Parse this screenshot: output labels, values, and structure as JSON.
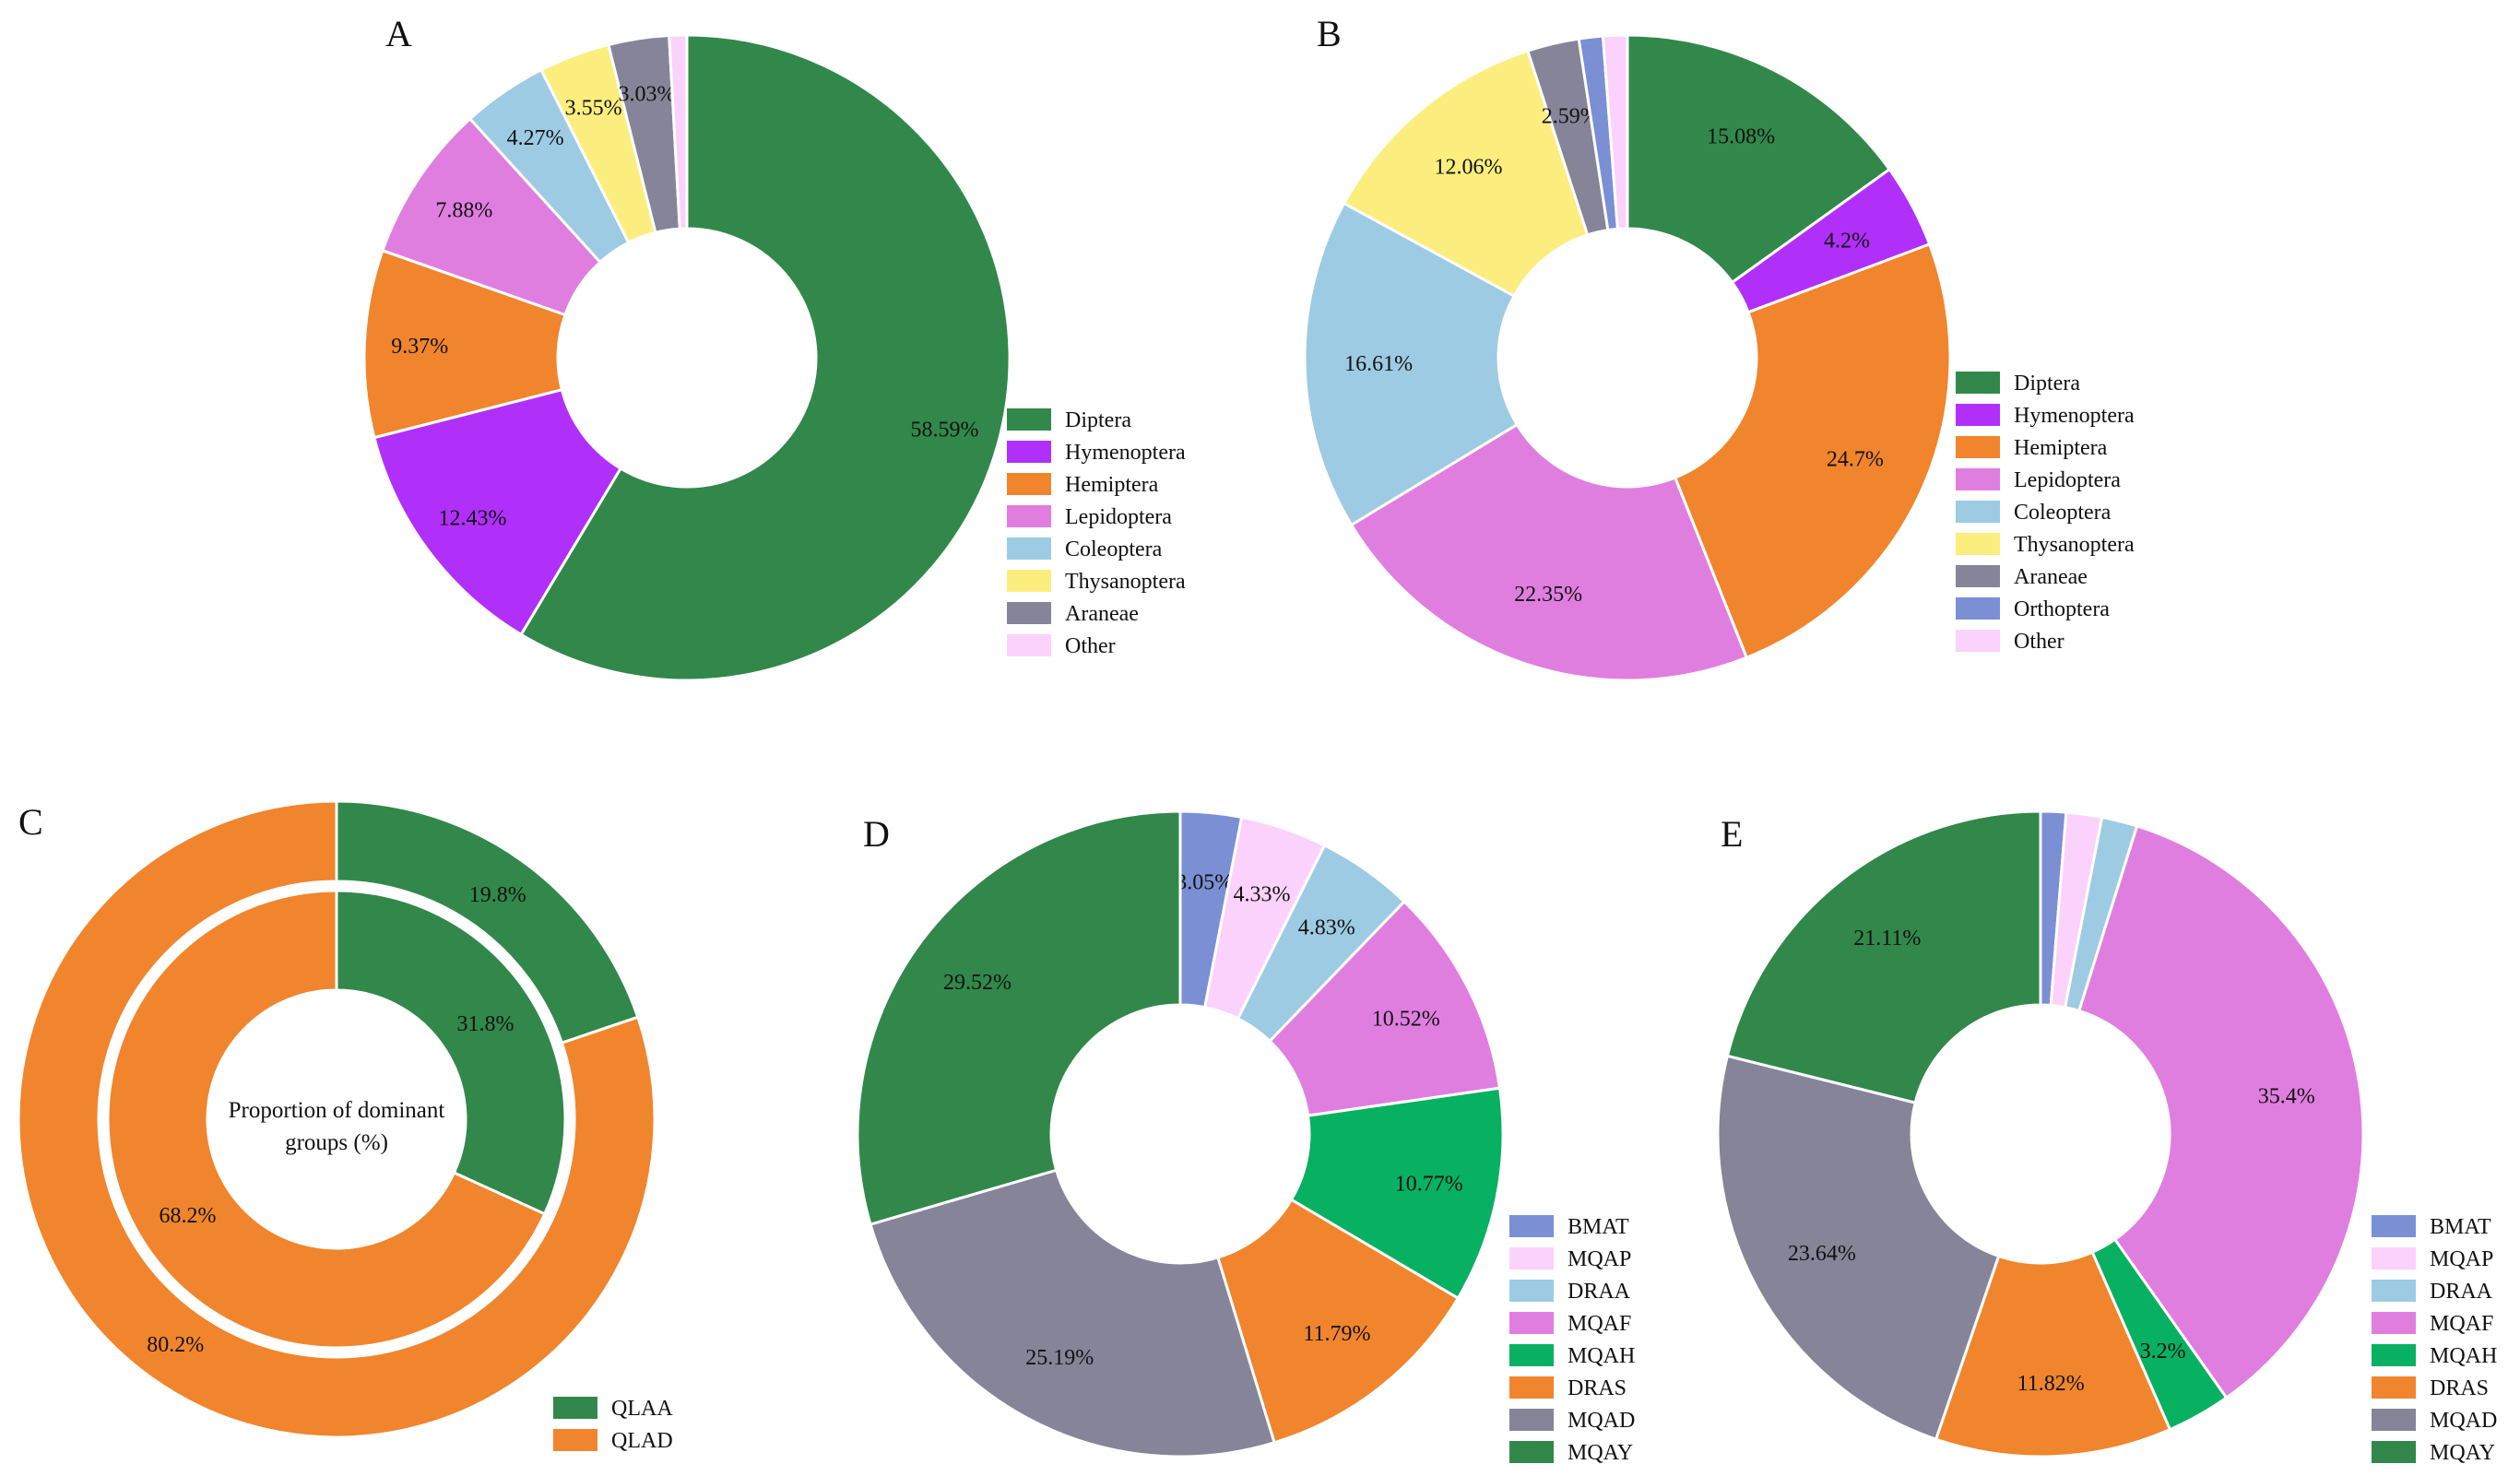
{
  "figure": {
    "panels": [
      {
        "id": "A",
        "letter": "A"
      },
      {
        "id": "B",
        "letter": "B"
      },
      {
        "id": "C",
        "letter": "C"
      },
      {
        "id": "D",
        "letter": "D"
      },
      {
        "id": "E",
        "letter": "E"
      }
    ]
  },
  "chart_data": [
    {
      "panel": "A",
      "type": "pie",
      "style": "donut",
      "title": "A",
      "legend_position": "right",
      "slices": [
        {
          "name": "Diptera",
          "value": 58.59,
          "label": "58.59%",
          "color": "#31884a"
        },
        {
          "name": "Hymenoptera",
          "value": 12.43,
          "label": "12.43%",
          "color": "#b030fa"
        },
        {
          "name": "Hemiptera",
          "value": 9.37,
          "label": "9.37%",
          "color": "#f0852d"
        },
        {
          "name": "Lepidoptera",
          "value": 7.88,
          "label": "7.88%",
          "color": "#e07ee0"
        },
        {
          "name": "Coleoptera",
          "value": 4.27,
          "label": "4.27%",
          "color": "#9dcbe3"
        },
        {
          "name": "Thysanoptera",
          "value": 3.55,
          "label": "3.55%",
          "color": "#fbee7e"
        },
        {
          "name": "Araneae",
          "value": 3.03,
          "label": "3.03%",
          "color": "#868499"
        },
        {
          "name": "Other",
          "value": 0.88,
          "label": "",
          "color": "#fbd2fb"
        }
      ]
    },
    {
      "panel": "B",
      "type": "pie",
      "style": "donut",
      "title": "B",
      "legend_position": "right",
      "slices": [
        {
          "name": "Diptera",
          "value": 15.08,
          "label": "15.08%",
          "color": "#31884a"
        },
        {
          "name": "Hymenoptera",
          "value": 4.2,
          "label": "4.2%",
          "color": "#b030fa"
        },
        {
          "name": "Hemiptera",
          "value": 24.7,
          "label": "24.7%",
          "color": "#f0852d"
        },
        {
          "name": "Lepidoptera",
          "value": 22.35,
          "label": "22.35%",
          "color": "#e07ee0"
        },
        {
          "name": "Coleoptera",
          "value": 16.61,
          "label": "16.61%",
          "color": "#9dcbe3"
        },
        {
          "name": "Thysanoptera",
          "value": 12.06,
          "label": "12.06%",
          "color": "#fbee7e"
        },
        {
          "name": "Araneae",
          "value": 2.59,
          "label": "2.59%",
          "color": "#868499"
        },
        {
          "name": "Orthoptera",
          "value": 1.2,
          "label": "",
          "color": "#7b8fd4"
        },
        {
          "name": "Other",
          "value": 1.21,
          "label": "",
          "color": "#fbd2fb"
        }
      ]
    },
    {
      "panel": "C",
      "type": "pie",
      "style": "nested-donut",
      "title": "C",
      "center_label": [
        "Proportion of dominant",
        "groups (%)"
      ],
      "legend_position": "bottom-right",
      "rings": [
        {
          "ring": "outer",
          "slices": [
            {
              "name": "QLAA",
              "value": 19.8,
              "label": "19.8%",
              "color": "#31884a"
            },
            {
              "name": "QLAD",
              "value": 80.2,
              "label": "80.2%",
              "color": "#f0852d"
            }
          ]
        },
        {
          "ring": "inner",
          "slices": [
            {
              "name": "QLAA",
              "value": 31.8,
              "label": "31.8%",
              "color": "#31884a"
            },
            {
              "name": "QLAD",
              "value": 68.2,
              "label": "68.2%",
              "color": "#f0852d"
            }
          ]
        }
      ],
      "legend": [
        {
          "name": "QLAA",
          "color": "#31884a"
        },
        {
          "name": "QLAD",
          "color": "#f0852d"
        }
      ]
    },
    {
      "panel": "D",
      "type": "pie",
      "style": "donut",
      "title": "D",
      "legend_position": "bottom-right",
      "slices": [
        {
          "name": "BMAT",
          "value": 3.05,
          "label": "3.05%",
          "color": "#7b8fd4"
        },
        {
          "name": "MQAP",
          "value": 4.33,
          "label": "4.33%",
          "color": "#fbd2fb"
        },
        {
          "name": "DRAA",
          "value": 4.83,
          "label": "4.83%",
          "color": "#9dcbe3"
        },
        {
          "name": "MQAF",
          "value": 10.52,
          "label": "10.52%",
          "color": "#e07ee0"
        },
        {
          "name": "MQAH",
          "value": 10.77,
          "label": "10.77%",
          "color": "#08b061"
        },
        {
          "name": "DRAS",
          "value": 11.79,
          "label": "11.79%",
          "color": "#f0852d"
        },
        {
          "name": "MQAD",
          "value": 25.19,
          "label": "25.19%",
          "color": "#868499"
        },
        {
          "name": "MQAY",
          "value": 29.52,
          "label": "29.52%",
          "color": "#31884a"
        }
      ]
    },
    {
      "panel": "E",
      "type": "pie",
      "style": "donut",
      "title": "E",
      "legend_position": "bottom-right",
      "slices": [
        {
          "name": "BMAT",
          "value": 1.27,
          "label": "",
          "color": "#7b8fd4"
        },
        {
          "name": "MQAP",
          "value": 1.78,
          "label": "",
          "color": "#fbd2fb"
        },
        {
          "name": "DRAA",
          "value": 1.78,
          "label": "",
          "color": "#9dcbe3"
        },
        {
          "name": "MQAF",
          "value": 35.4,
          "label": "35.4%",
          "color": "#e07ee0"
        },
        {
          "name": "MQAH",
          "value": 3.2,
          "label": "3.2%",
          "color": "#08b061"
        },
        {
          "name": "DRAS",
          "value": 11.82,
          "label": "11.82%",
          "color": "#f0852d"
        },
        {
          "name": "MQAD",
          "value": 23.64,
          "label": "23.64%",
          "color": "#868499"
        },
        {
          "name": "MQAY",
          "value": 21.11,
          "label": "21.11%",
          "color": "#31884a"
        }
      ]
    }
  ]
}
